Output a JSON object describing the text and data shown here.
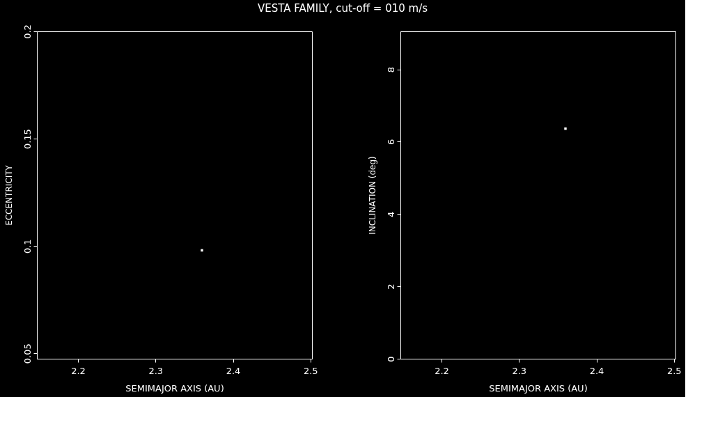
{
  "chart_data": [
    {
      "type": "scatter",
      "title": "VESTA FAMILY, cut-off = 010 m/s",
      "xlabel": "SEMIMAJOR AXIS (AU)",
      "ylabel": "ECCENTRICITY",
      "x": [
        2.36
      ],
      "series": [
        {
          "color": "#ffffff",
          "values": [
            0.098
          ]
        }
      ],
      "xlim": [
        2.147,
        2.502
      ],
      "xticks": [
        2.2,
        2.3,
        2.4,
        2.5
      ],
      "ylim": [
        0.0475,
        0.2
      ],
      "yticks": [
        0.05,
        0.1,
        0.15,
        0.2
      ],
      "grid": false,
      "marker": "square"
    },
    {
      "type": "scatter",
      "xlabel": "SEMIMAJOR AXIS (AU)",
      "ylabel": "INCLINATION (deg)",
      "x": [
        2.36
      ],
      "series": [
        {
          "color": "#ffffff",
          "values": [
            6.36
          ]
        }
      ],
      "xlim": [
        2.147,
        2.502
      ],
      "xticks": [
        2.2,
        2.3,
        2.4,
        2.5
      ],
      "ylim": [
        0,
        9.05
      ],
      "yticks": [
        0,
        2,
        4,
        6,
        8
      ],
      "grid": false,
      "marker": "square"
    }
  ]
}
